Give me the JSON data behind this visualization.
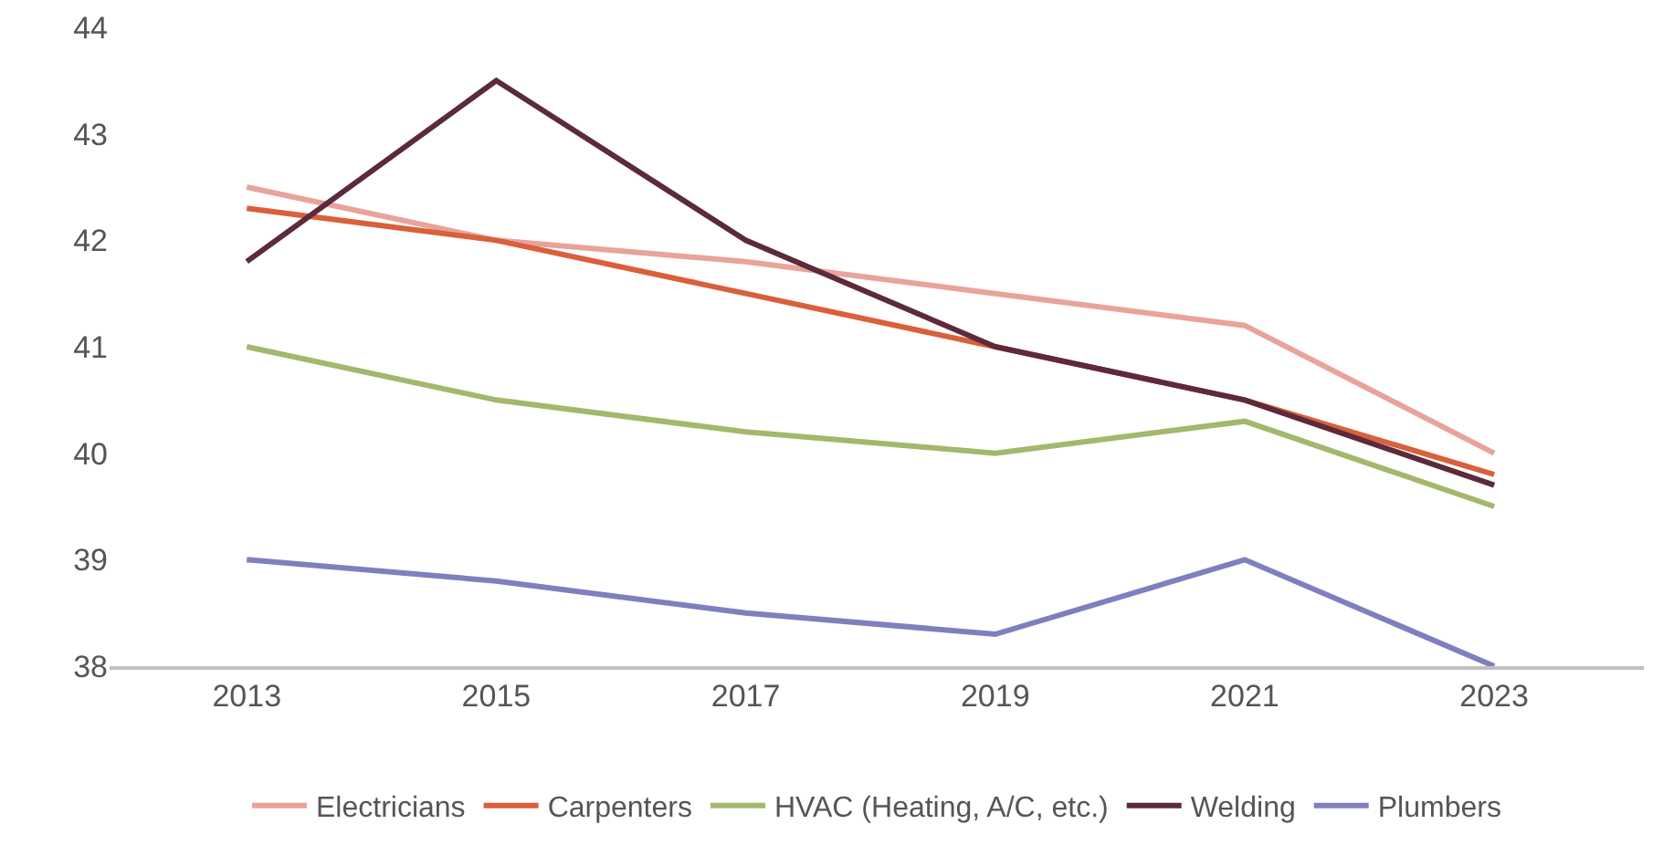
{
  "chart_data": {
    "type": "line",
    "categories": [
      "2013",
      "2015",
      "2017",
      "2019",
      "2021",
      "2023"
    ],
    "series": [
      {
        "name": "Electricians",
        "color": "#e8a39b",
        "values": [
          42.5,
          42.0,
          41.8,
          41.5,
          41.2,
          40.0
        ]
      },
      {
        "name": "Carpenters",
        "color": "#d9603b",
        "values": [
          42.3,
          42.0,
          41.5,
          41.0,
          40.5,
          39.8
        ]
      },
      {
        "name": "HVAC (Heating, A/C, etc.)",
        "color": "#a3b86c",
        "values": [
          41.0,
          40.5,
          40.2,
          40.0,
          40.3,
          39.5
        ]
      },
      {
        "name": "Welding",
        "color": "#5c2a3a",
        "values": [
          41.8,
          43.5,
          42.0,
          41.0,
          40.5,
          39.7
        ]
      },
      {
        "name": "Plumbers",
        "color": "#7f7fc0",
        "values": [
          39.0,
          38.8,
          38.5,
          38.3,
          39.0,
          38.0
        ]
      }
    ],
    "ylim": [
      38,
      44
    ],
    "yticks": [
      38,
      39,
      40,
      41,
      42,
      43,
      44
    ],
    "legend": "bottom",
    "marker": "none",
    "line_style": "solid"
  }
}
